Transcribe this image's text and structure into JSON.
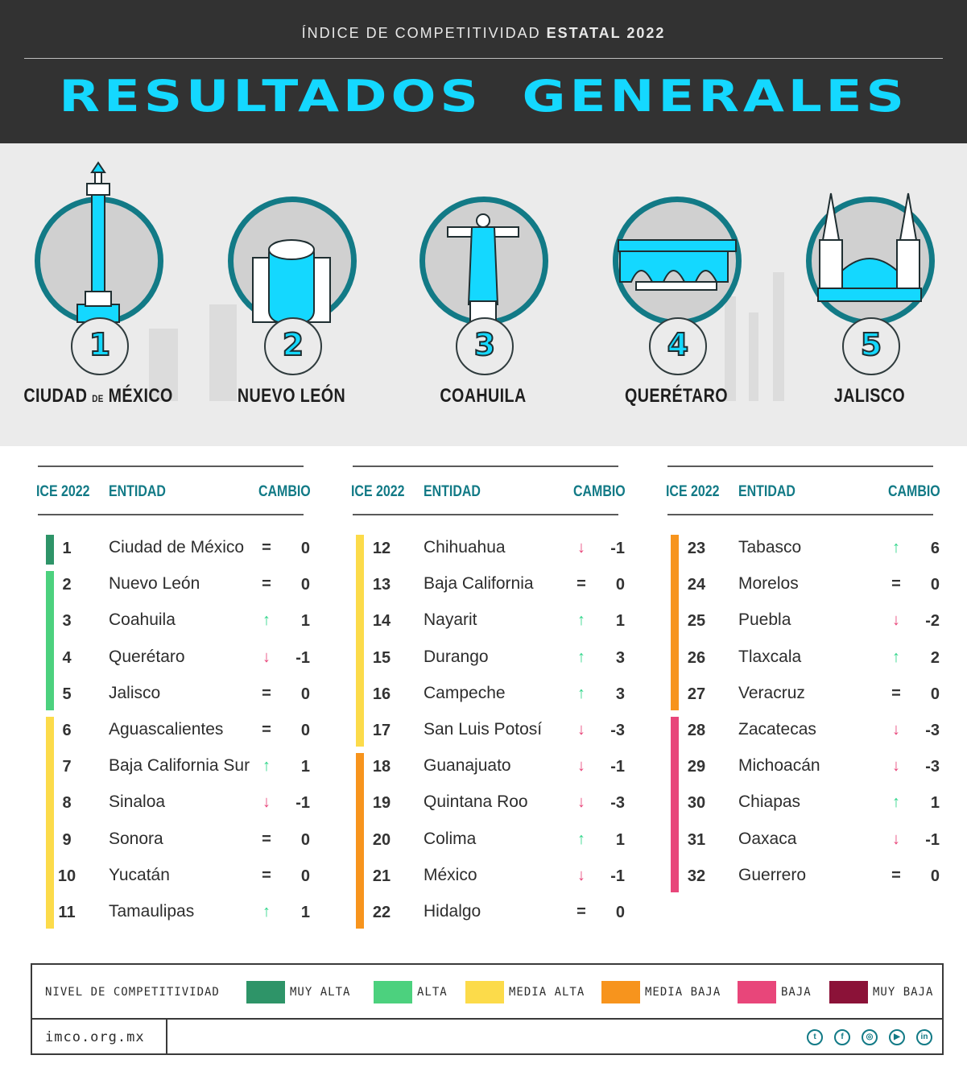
{
  "header": {
    "subtitle_prefix": "ÍNDICE DE COMPETITIVIDAD",
    "subtitle_bold": "ESTATAL 2022",
    "title": "RESULTADOS GENERALES"
  },
  "podium": [
    {
      "rank": "1",
      "name_a": "CIUDAD",
      "name_small": "DE",
      "name_b": "MÉXICO",
      "icon": "angel-independencia-icon"
    },
    {
      "rank": "2",
      "name": "NUEVO LEÓN",
      "icon": "monterrey-landmark-icon"
    },
    {
      "rank": "3",
      "name": "COAHUILA",
      "icon": "cristo-statue-icon"
    },
    {
      "rank": "4",
      "name": "QUERÉTARO",
      "icon": "aqueduct-icon"
    },
    {
      "rank": "5",
      "name": "JALISCO",
      "icon": "cathedral-icon"
    }
  ],
  "table_headers": {
    "rank": "ICE 2022",
    "entity": "ENTIDAD",
    "change": "CAMBIO"
  },
  "rows": [
    {
      "rank": "1",
      "entity": "Ciudad de México",
      "symbol": "=",
      "change": "0",
      "dir": "eq",
      "level": "muy_alta"
    },
    {
      "rank": "2",
      "entity": "Nuevo León",
      "symbol": "=",
      "change": "0",
      "dir": "eq",
      "level": "alta"
    },
    {
      "rank": "3",
      "entity": "Coahuila",
      "symbol": "↑",
      "change": "1",
      "dir": "up",
      "level": "alta"
    },
    {
      "rank": "4",
      "entity": "Querétaro",
      "symbol": "↓",
      "change": "-1",
      "dir": "down",
      "level": "alta"
    },
    {
      "rank": "5",
      "entity": "Jalisco",
      "symbol": "=",
      "change": "0",
      "dir": "eq",
      "level": "alta"
    },
    {
      "rank": "6",
      "entity": "Aguascalientes",
      "symbol": "=",
      "change": "0",
      "dir": "eq",
      "level": "media_alta"
    },
    {
      "rank": "7",
      "entity": "Baja California Sur",
      "symbol": "↑",
      "change": "1",
      "dir": "up",
      "level": "media_alta"
    },
    {
      "rank": "8",
      "entity": "Sinaloa",
      "symbol": "↓",
      "change": "-1",
      "dir": "down",
      "level": "media_alta"
    },
    {
      "rank": "9",
      "entity": "Sonora",
      "symbol": "=",
      "change": "0",
      "dir": "eq",
      "level": "media_alta"
    },
    {
      "rank": "10",
      "entity": "Yucatán",
      "symbol": "=",
      "change": "0",
      "dir": "eq",
      "level": "media_alta"
    },
    {
      "rank": "11",
      "entity": "Tamaulipas",
      "symbol": "↑",
      "change": "1",
      "dir": "up",
      "level": "media_alta"
    },
    {
      "rank": "12",
      "entity": "Chihuahua",
      "symbol": "↓",
      "change": "-1",
      "dir": "down",
      "level": "media_alta"
    },
    {
      "rank": "13",
      "entity": "Baja California",
      "symbol": "=",
      "change": "0",
      "dir": "eq",
      "level": "media_alta"
    },
    {
      "rank": "14",
      "entity": "Nayarit",
      "symbol": "↑",
      "change": "1",
      "dir": "up",
      "level": "media_alta"
    },
    {
      "rank": "15",
      "entity": "Durango",
      "symbol": "↑",
      "change": "3",
      "dir": "up",
      "level": "media_alta"
    },
    {
      "rank": "16",
      "entity": "Campeche",
      "symbol": "↑",
      "change": "3",
      "dir": "up",
      "level": "media_alta"
    },
    {
      "rank": "17",
      "entity": "San Luis Potosí",
      "symbol": "↓",
      "change": "-3",
      "dir": "down",
      "level": "media_alta"
    },
    {
      "rank": "18",
      "entity": "Guanajuato",
      "symbol": "↓",
      "change": "-1",
      "dir": "down",
      "level": "media_baja"
    },
    {
      "rank": "19",
      "entity": "Quintana Roo",
      "symbol": "↓",
      "change": "-3",
      "dir": "down",
      "level": "media_baja"
    },
    {
      "rank": "20",
      "entity": "Colima",
      "symbol": "↑",
      "change": "1",
      "dir": "up",
      "level": "media_baja"
    },
    {
      "rank": "21",
      "entity": "México",
      "symbol": "↓",
      "change": "-1",
      "dir": "down",
      "level": "media_baja"
    },
    {
      "rank": "22",
      "entity": "Hidalgo",
      "symbol": "=",
      "change": "0",
      "dir": "eq",
      "level": "media_baja"
    },
    {
      "rank": "23",
      "entity": "Tabasco",
      "symbol": "↑",
      "change": "6",
      "dir": "up",
      "level": "media_baja"
    },
    {
      "rank": "24",
      "entity": "Morelos",
      "symbol": "=",
      "change": "0",
      "dir": "eq",
      "level": "media_baja"
    },
    {
      "rank": "25",
      "entity": "Puebla",
      "symbol": "↓",
      "change": "-2",
      "dir": "down",
      "level": "media_baja"
    },
    {
      "rank": "26",
      "entity": "Tlaxcala",
      "symbol": "↑",
      "change": "2",
      "dir": "up",
      "level": "media_baja"
    },
    {
      "rank": "27",
      "entity": "Veracruz",
      "symbol": "=",
      "change": "0",
      "dir": "eq",
      "level": "media_baja"
    },
    {
      "rank": "28",
      "entity": "Zacatecas",
      "symbol": "↓",
      "change": "-3",
      "dir": "down",
      "level": "baja"
    },
    {
      "rank": "29",
      "entity": "Michoacán",
      "symbol": "↓",
      "change": "-3",
      "dir": "down",
      "level": "baja"
    },
    {
      "rank": "30",
      "entity": "Chiapas",
      "symbol": "↑",
      "change": "1",
      "dir": "up",
      "level": "baja"
    },
    {
      "rank": "31",
      "entity": "Oaxaca",
      "symbol": "↓",
      "change": "-1",
      "dir": "down",
      "level": "baja"
    },
    {
      "rank": "32",
      "entity": "Guerrero",
      "symbol": "=",
      "change": "0",
      "dir": "eq",
      "level": "baja"
    }
  ],
  "colors": {
    "muy_alta": "#2e9468",
    "alta": "#4cd17e",
    "media_alta": "#fcdb4a",
    "media_baja": "#f7941d",
    "baja": "#e8467a",
    "muy_baja": "#8b1238",
    "up": "#2fd68a",
    "down": "#e8467a",
    "accent": "#14d8ff",
    "teal": "#127a86"
  },
  "legend": {
    "label": "NIVEL DE COMPETITIVIDAD",
    "items": [
      {
        "key": "muy_alta",
        "label": "MUY ALTA"
      },
      {
        "key": "alta",
        "label": "ALTA"
      },
      {
        "key": "media_alta",
        "label": "MEDIA ALTA"
      },
      {
        "key": "media_baja",
        "label": "MEDIA BAJA"
      },
      {
        "key": "baja",
        "label": "BAJA"
      },
      {
        "key": "muy_baja",
        "label": "MUY BAJA"
      }
    ],
    "url": "imco.org.mx",
    "social": [
      "twitter-icon",
      "facebook-icon",
      "instagram-icon",
      "youtube-icon",
      "linkedin-icon"
    ]
  }
}
